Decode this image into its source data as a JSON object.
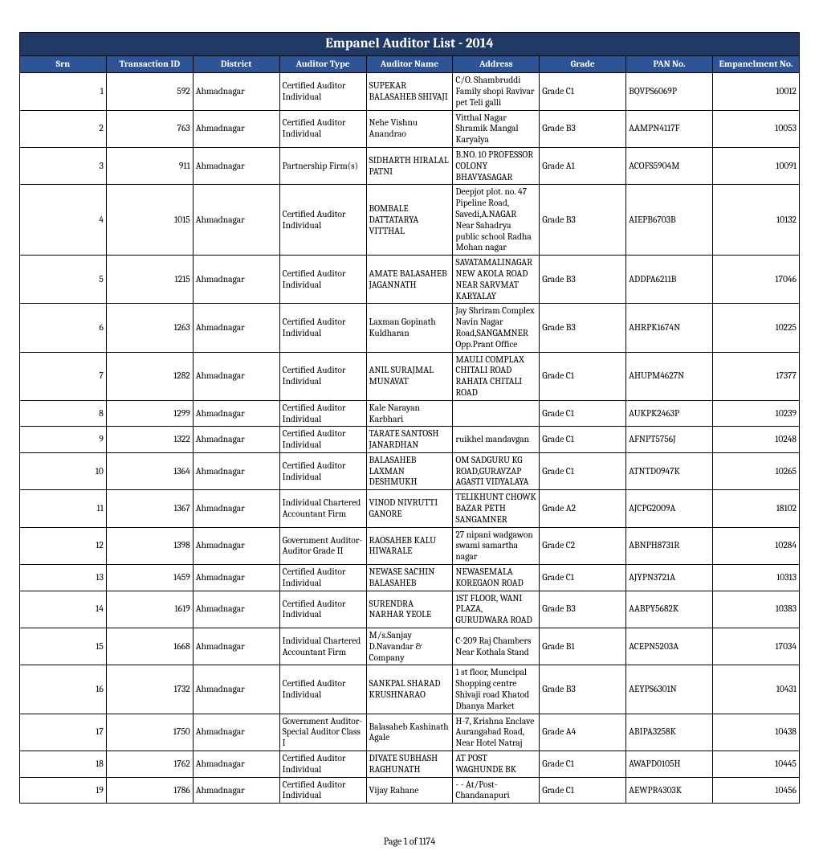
{
  "title": "Empanel Auditor List - 2014",
  "columns": [
    "Srn",
    "Transaction ID",
    "District",
    "Auditor Type",
    "Auditor Name",
    "Address",
    "Grade",
    "PAN No.",
    "Empanelment No."
  ],
  "footer": "Page 1 of 1174",
  "rows": [
    {
      "srn": "1",
      "tid": "592",
      "district": "Ahmadnagar",
      "atype": "Certified Auditor Individual",
      "aname": "SUPEKAR BALASAHEB SHIVAJI",
      "addr": "C/O. Shambruddi Family shopi Ravivar pet Teli galli",
      "grade": "Grade C1",
      "pan": "BQVPS6069P",
      "emp": "10012"
    },
    {
      "srn": "2",
      "tid": "763",
      "district": "Ahmadnagar",
      "atype": "Certified Auditor Individual",
      "aname": "Nehe Vishnu Anandrao",
      "addr": "Vitthal Nagar Shramik Mangal Karyalya",
      "grade": "Grade B3",
      "pan": "AAMPN4117F",
      "emp": "10053"
    },
    {
      "srn": "3",
      "tid": "911",
      "district": "Ahmadnagar",
      "atype": "Partnership Firm(s)",
      "aname": "SIDHARTH HIRALAL PATNI",
      "addr": "B.NO. 10 PROFESSOR COLONY BHAVYASAGAR",
      "grade": "Grade A1",
      "pan": "ACOFS5904M",
      "emp": "10091"
    },
    {
      "srn": "4",
      "tid": "1015",
      "district": "Ahmadnagar",
      "atype": "Certified Auditor Individual",
      "aname": "BOMBALE DATTATARYA VITTHAL",
      "addr": "Deepjot plot. no. 47 Pipeline Road, Savedi,A.NAGAR Near Sahadrya public school Radha Mohan nagar",
      "grade": "Grade B3",
      "pan": "AIEPB6703B",
      "emp": "10132"
    },
    {
      "srn": "5",
      "tid": "1215",
      "district": "Ahmadnagar",
      "atype": "Certified Auditor Individual",
      "aname": "AMATE BALASAHEB JAGANNATH",
      "addr": "SAVATAMALINAGAR NEW AKOLA ROAD NEAR SARVMAT KARYALAY",
      "grade": "Grade B3",
      "pan": "ADDPA6211B",
      "emp": "17046"
    },
    {
      "srn": "6",
      "tid": "1263",
      "district": "Ahmadnagar",
      "atype": "Certified Auditor Individual",
      "aname": "Laxman Gopinath Kuldharan",
      "addr": "Jay Shriram Complex Navin Nagar Road,SANGAMNER Opp.Prant Office",
      "grade": "Grade B3",
      "pan": "AHRPK1674N",
      "emp": "10225"
    },
    {
      "srn": "7",
      "tid": "1282",
      "district": "Ahmadnagar",
      "atype": "Certified Auditor Individual",
      "aname": "ANIL SURAJMAL MUNAVAT",
      "addr": "MAULI COMPLAX CHITALI ROAD RAHATA CHITALI ROAD",
      "grade": "Grade C1",
      "pan": "AHUPM4627N",
      "emp": "17377"
    },
    {
      "srn": "8",
      "tid": "1299",
      "district": "Ahmadnagar",
      "atype": "Certified Auditor Individual",
      "aname": "Kale Narayan Karbhari",
      "addr": "",
      "grade": "Grade C1",
      "pan": "AUKPK2463P",
      "emp": "10239"
    },
    {
      "srn": "9",
      "tid": "1322",
      "district": "Ahmadnagar",
      "atype": "Certified Auditor Individual",
      "aname": "TARATE SANTOSH JANARDHAN",
      "addr": "ruikhel mandavgan",
      "grade": "Grade C1",
      "pan": "AFNPT5756J",
      "emp": "10248"
    },
    {
      "srn": "10",
      "tid": "1364",
      "district": "Ahmadnagar",
      "atype": "Certified Auditor Individual",
      "aname": "BALASAHEB LAXMAN DESHMUKH",
      "addr": "OM SADGURU KG ROAD,GURAVZAP AGASTI VIDYALAYA",
      "grade": "Grade C1",
      "pan": "ATNTD0947K",
      "emp": "10265"
    },
    {
      "srn": "11",
      "tid": "1367",
      "district": "Ahmadnagar",
      "atype": "Individual Chartered Accountant Firm",
      "aname": "VINOD NIVRUTTI GANORE",
      "addr": "TELIKHUNT CHOWK BAZAR PETH SANGAMNER",
      "grade": "Grade A2",
      "pan": "AJCPG2009A",
      "emp": "18102"
    },
    {
      "srn": "12",
      "tid": "1398",
      "district": "Ahmadnagar",
      "atype": "Government Auditor- Auditor Grade II",
      "aname": "RAOSAHEB KALU HIWARALE",
      "addr": "27 nipani wadgawon swami samartha nagar",
      "grade": "Grade C2",
      "pan": "ABNPH8731R",
      "emp": "10284"
    },
    {
      "srn": "13",
      "tid": "1459",
      "district": "Ahmadnagar",
      "atype": "Certified Auditor Individual",
      "aname": "NEWASE SACHIN BALASAHEB",
      "addr": "NEWASEMALA KOREGAON ROAD",
      "grade": "Grade C1",
      "pan": "AJYPN3721A",
      "emp": "10313"
    },
    {
      "srn": "14",
      "tid": "1619",
      "district": "Ahmadnagar",
      "atype": "Certified Auditor Individual",
      "aname": "SURENDRA NARHAR YEOLE",
      "addr": "1ST FLOOR, WANI PLAZA, GURUDWARA ROAD",
      "grade": "Grade B3",
      "pan": "AABPY5682K",
      "emp": "10383"
    },
    {
      "srn": "15",
      "tid": "1668",
      "district": "Ahmadnagar",
      "atype": "Individual Chartered Accountant Firm",
      "aname": "M/s.Sanjay D.Navandar & Company",
      "addr": "C-209 Raj Chambers Near Kothala Stand",
      "grade": "Grade B1",
      "pan": "ACEPN5203A",
      "emp": "17034"
    },
    {
      "srn": "16",
      "tid": "1732",
      "district": "Ahmadnagar",
      "atype": "Certified Auditor Individual",
      "aname": "SANKPAL SHARAD KRUSHNARAO",
      "addr": "1 st floor, Muncipal Shopping centre Shivaji road Khatod Dhanya Market",
      "grade": "Grade B3",
      "pan": "AEYPS6301N",
      "emp": "10431"
    },
    {
      "srn": "17",
      "tid": "1750",
      "district": "Ahmadnagar",
      "atype": "Government Auditor- Special Auditor Class I",
      "aname": "Balasaheb Kashinath Agale",
      "addr": "H-7, Krishna Enclave Aurangabad Road, Near Hotel Natraj",
      "grade": "Grade A4",
      "pan": "ABIPA3258K",
      "emp": "10438"
    },
    {
      "srn": "18",
      "tid": "1762",
      "district": "Ahmadnagar",
      "atype": "Certified Auditor Individual",
      "aname": "DIVATE SUBHASH RAGHUNATH",
      "addr": "AT POST WAGHUNDE BK",
      "grade": "Grade C1",
      "pan": "AWAPD0105H",
      "emp": "10445"
    },
    {
      "srn": "19",
      "tid": "1786",
      "district": "Ahmadnagar",
      "atype": "Certified Auditor Individual",
      "aname": "Vijay Rahane",
      "addr": "- - At/Post-Chandanapuri",
      "grade": "Grade C1",
      "pan": "AEWPR4303K",
      "emp": "10456"
    }
  ]
}
